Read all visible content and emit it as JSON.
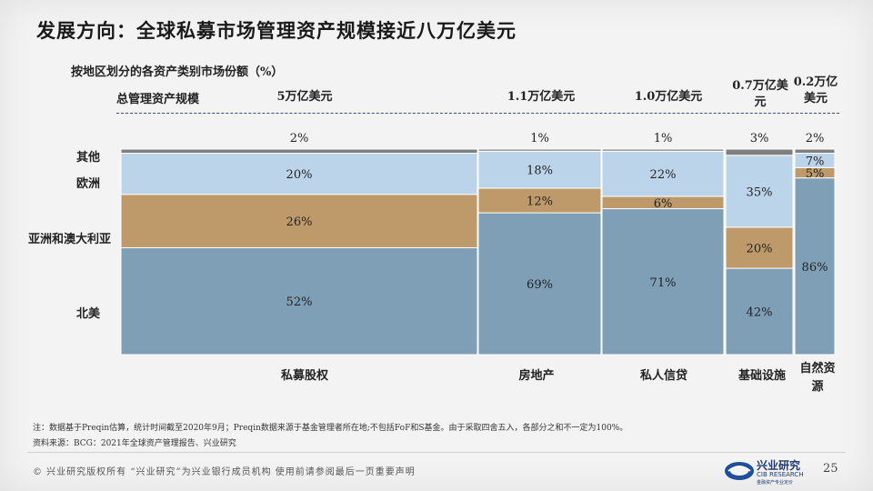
{
  "header": {
    "title": "发展方向：全球私募市场管理资产规模接近八万亿美元"
  },
  "chart_data": {
    "type": "marimekko",
    "title": "按地区划分的各资产类别市场份额（%）",
    "aum_label": "总管理资产规模",
    "categories": [
      "私募股权",
      "房地产",
      "私人信贷",
      "基础设施",
      "自然资源"
    ],
    "aum": [
      "5万亿美元",
      "1.1万亿美元",
      "1.0万亿美元",
      "0.7万亿美元",
      "0.2万亿美元"
    ],
    "aum_trillion_usd": [
      5.0,
      1.1,
      1.0,
      0.7,
      0.2
    ],
    "regions": [
      "北美",
      "亚洲和澳大利亚",
      "欧洲",
      "其他"
    ],
    "region_colors": [
      "#7f9fb6",
      "#be9a6b",
      "#bcd4ea",
      "#7f7f7f"
    ],
    "series": [
      {
        "name": "北美",
        "values": [
          52,
          69,
          71,
          42,
          86
        ]
      },
      {
        "name": "亚洲和澳大利亚",
        "values": [
          26,
          12,
          6,
          20,
          5
        ]
      },
      {
        "name": "欧洲",
        "values": [
          20,
          18,
          22,
          35,
          7
        ]
      },
      {
        "name": "其他",
        "values": [
          2,
          1,
          1,
          3,
          2
        ]
      }
    ]
  },
  "notes": {
    "note": "注：数据基于Preqin估算，统计时间截至2020年9月；Preqin数据来源于基金管理者所在地;不包括FoF和S基金。由于采取四舍五入，各部分之和不一定为100%。",
    "source": "资料来源：BCG：2021年全球资产管理报告、兴业研究"
  },
  "footer": {
    "text": "© 兴业研究版权所有  “兴业研究”为兴业银行成员机构  使用前请参阅最后一页重要声明",
    "logo_cn": "兴业研究",
    "logo_en": "CIB RESEARCH",
    "logo_sub": "金融资产专业定价",
    "page": "25"
  }
}
